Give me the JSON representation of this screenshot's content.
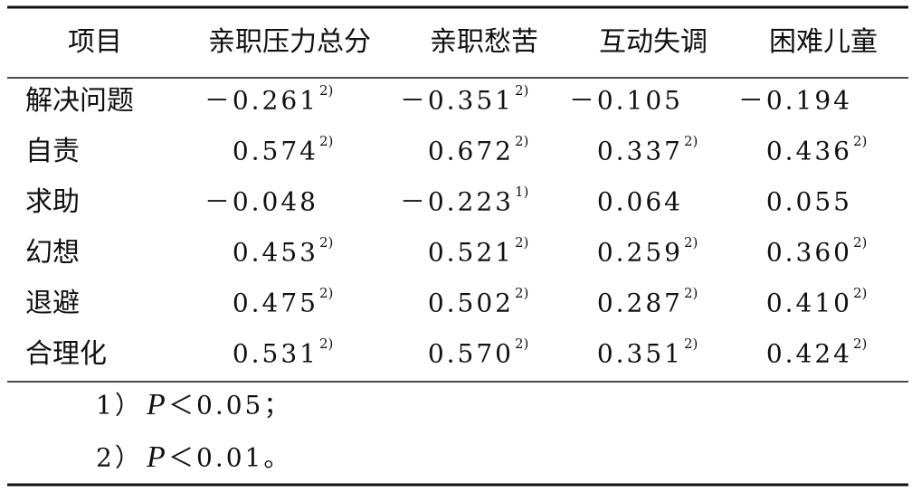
{
  "table": {
    "header": [
      "项目",
      "亲职压力总分",
      "亲职愁苦",
      "互动失调",
      "困难儿童"
    ],
    "rows": [
      [
        "解决问题",
        {
          "text": "－0.261",
          "sup": "2)"
        },
        {
          "text": "－0.351",
          "sup": "2)"
        },
        {
          "text": "－0.105"
        },
        {
          "text": "－0.194"
        }
      ],
      [
        "自责",
        {
          "text": "0.574",
          "sup": "2)"
        },
        {
          "text": "0.672",
          "sup": "2)"
        },
        {
          "text": "0.337",
          "sup": "2)"
        },
        {
          "text": "0.436",
          "sup": "2)"
        }
      ],
      [
        "求助",
        {
          "text": "－0.048"
        },
        {
          "text": "－0.223",
          "sup": "1)"
        },
        {
          "text": "0.064"
        },
        {
          "text": "0.055"
        }
      ],
      [
        "幻想",
        {
          "text": "0.453",
          "sup": "2)"
        },
        {
          "text": "0.521",
          "sup": "2)"
        },
        {
          "text": "0.259",
          "sup": "2)"
        },
        {
          "text": "0.360",
          "sup": "2)"
        }
      ],
      [
        "退避",
        {
          "text": "0.475",
          "sup": "2)"
        },
        {
          "text": "0.502",
          "sup": "2)"
        },
        {
          "text": "0.287",
          "sup": "2)"
        },
        {
          "text": "0.410",
          "sup": "2)"
        }
      ],
      [
        "合理化",
        {
          "text": "0.531",
          "sup": "2)"
        },
        {
          "text": "0.570",
          "sup": "2)"
        },
        {
          "text": "0.351",
          "sup": "2)"
        },
        {
          "text": "0.424",
          "sup": "2)"
        }
      ]
    ],
    "notes": [
      {
        "marker": "1）",
        "symbol": "P",
        "text": "＜0.05；"
      },
      {
        "marker": "2）",
        "symbol": "P",
        "text": "＜0.01。"
      }
    ]
  }
}
